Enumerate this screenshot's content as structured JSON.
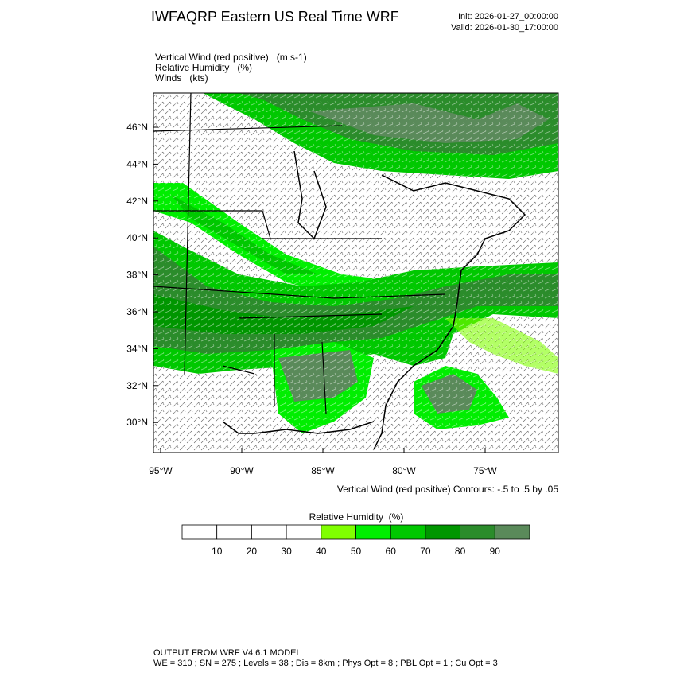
{
  "header": {
    "title": "IWFAQRP Eastern US Real Time WRF",
    "init": "Init: 2026-01-27_00:00:00",
    "valid": "Valid: 2026-01-30_17:00:00"
  },
  "fields": [
    "Vertical Wind (red positive)   (m s-1)",
    "Relative Humidity   (%)",
    "Winds   (kts)"
  ],
  "map": {
    "lat_labels": [
      "46°N",
      "44°N",
      "42°N",
      "40°N",
      "38°N",
      "36°N",
      "34°N",
      "32°N",
      "30°N"
    ],
    "lon_labels": [
      "95°W",
      "90°W",
      "85°W",
      "80°W",
      "75°W"
    ],
    "contour_note": "Vertical Wind (red positive) Contours: -.5 to .5 by .05"
  },
  "colorbar": {
    "title": "Relative Humidity  (%)",
    "ticks": [
      10,
      20,
      30,
      40,
      50,
      60,
      70,
      80,
      90
    ],
    "colors": [
      "#ffffff",
      "#ffffff",
      "#ffffff",
      "#ffffff",
      "#80ff00",
      "#00ee00",
      "#00c800",
      "#009600",
      "#2b8c2b",
      "#5a8a5a"
    ]
  },
  "footer": {
    "line1": "OUTPUT FROM WRF V4.6.1 MODEL",
    "line2": "WE = 310 ; SN = 275 ; Levels = 38 ; Dis = 8km ; Phys Opt = 8 ; PBL Opt = 1 ; Cu Opt = 3"
  }
}
